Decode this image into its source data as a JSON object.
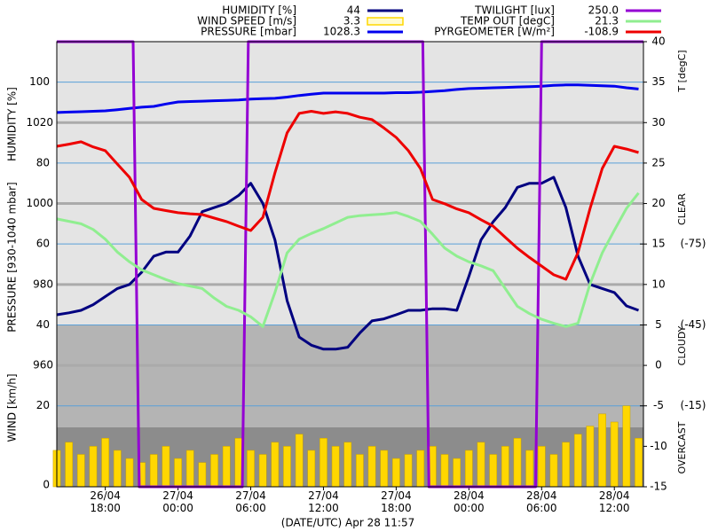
{
  "chart_data": {
    "type": "line",
    "xlabel": "(DATE/UTC) Apr 28 11:57",
    "ylabel": "HUMIDITY [%]",
    "pressure_label": "PRESSURE [930-1040 mbar]",
    "wind_label": "WIND [km/h]",
    "y2label": "T [degC]",
    "sky_labels": [
      "CLEAR",
      "CLOUDY",
      "OVERCAST"
    ],
    "xlim": [
      14,
      62.4
    ],
    "xticks": [
      {
        "value": 18,
        "label": "26/04 18:00"
      },
      {
        "value": 24,
        "label": "27/04 00:00"
      },
      {
        "value": 30,
        "label": "27/04 06:00"
      },
      {
        "value": 36,
        "label": "27/04 12:00"
      },
      {
        "value": 42,
        "label": "27/04 18:00"
      },
      {
        "value": 48,
        "label": "28/04 00:00"
      },
      {
        "value": 54,
        "label": "28/04 06:00"
      },
      {
        "value": 60,
        "label": "28/04 12:00"
      }
    ],
    "ylim": [
      0,
      110
    ],
    "yticks": [
      40,
      60,
      80,
      100
    ],
    "pressure_lim": [
      930,
      1040
    ],
    "pressure_ticks": [
      960,
      980,
      1000,
      1020
    ],
    "wind_lim": [
      0,
      110
    ],
    "wind_ticks": [
      0,
      20
    ],
    "y2lim": [
      -15,
      40
    ],
    "y2ticks": [
      -15,
      -10,
      -5,
      0,
      5,
      10,
      15,
      20,
      25,
      30,
      35,
      40
    ],
    "y3lim": [
      15,
      -150
    ],
    "y3ticks": [
      {
        "value": -75,
        "label": "(-75)"
      },
      {
        "value": -45,
        "label": "(-45)"
      },
      {
        "value": -15,
        "label": "(-15)"
      }
    ],
    "twilight_lim": [
      0,
      250
    ],
    "x": [
      14,
      15,
      16,
      17,
      18,
      19,
      20,
      21,
      22,
      23,
      24,
      25,
      26,
      27,
      28,
      29,
      30,
      31,
      32,
      33,
      34,
      35,
      36,
      37,
      38,
      39,
      40,
      41,
      42,
      43,
      44,
      45,
      46,
      47,
      48,
      49,
      50,
      51,
      52,
      53,
      54,
      55,
      56,
      57,
      58,
      59,
      60,
      61,
      62
    ],
    "series": [
      {
        "name": "HUMIDITY [%]",
        "current": "44",
        "color": "#000080",
        "axis": "y",
        "values": [
          42.5,
          43,
          43.6,
          45,
          47,
          49,
          50,
          53,
          57,
          58,
          58,
          62,
          68,
          69,
          70,
          72,
          75,
          70,
          61,
          46,
          37,
          35,
          34,
          34,
          34.5,
          38,
          41,
          41.5,
          42.5,
          43.6,
          43.6,
          44,
          44,
          43.6,
          52,
          61,
          65.5,
          69,
          74,
          75,
          75,
          76.5,
          69,
          57,
          50,
          49,
          48,
          44.7,
          43.6
        ]
      },
      {
        "name": "WIND SPEED [m/s]",
        "current": "3.3",
        "color": "#ffd700",
        "axis": "wind",
        "type": "bar",
        "values": [
          9,
          11,
          8,
          10,
          12,
          9,
          7,
          6,
          8,
          10,
          7,
          9,
          6,
          8,
          10,
          12,
          9,
          8,
          11,
          10,
          13,
          9,
          12,
          10,
          11,
          8,
          10,
          9,
          7,
          8,
          9,
          10,
          8,
          7,
          9,
          11,
          8,
          10,
          12,
          9,
          10,
          8,
          11,
          13,
          15,
          18,
          16,
          20,
          12
        ]
      },
      {
        "name": "PRESSURE [mbar]",
        "current": "1028.3",
        "color": "#0000ee",
        "axis": "pressure",
        "values": [
          1022.5,
          1022.6,
          1022.7,
          1022.8,
          1022.9,
          1023.2,
          1023.5,
          1023.8,
          1024,
          1024.6,
          1025.1,
          1025.2,
          1025.3,
          1025.4,
          1025.5,
          1025.6,
          1025.8,
          1025.9,
          1026,
          1026.3,
          1026.7,
          1027,
          1027.3,
          1027.3,
          1027.3,
          1027.3,
          1027.3,
          1027.3,
          1027.4,
          1027.4,
          1027.5,
          1027.7,
          1027.9,
          1028.2,
          1028.4,
          1028.5,
          1028.6,
          1028.7,
          1028.8,
          1028.9,
          1029,
          1029.2,
          1029.3,
          1029.3,
          1029.2,
          1029.1,
          1029,
          1028.6,
          1028.3
        ]
      },
      {
        "name": "TWILIGHT [lux]",
        "current": "250.0",
        "color": "#9400d3",
        "axis": "twilight",
        "x": [
          14,
          20.3,
          20.8,
          29.3,
          29.8,
          44.2,
          44.7,
          53.5,
          54.0,
          62.4
        ],
        "values": [
          250,
          250,
          0,
          0,
          250,
          250,
          0,
          0,
          250,
          250
        ]
      },
      {
        "name": "TEMP OUT [degC]",
        "current": "21.3",
        "color": "#90ee90",
        "axis": "y2",
        "values": [
          18.1,
          17.8,
          17.5,
          16.8,
          15.6,
          14,
          12.8,
          11.8,
          11.2,
          10.6,
          10.1,
          9.8,
          9.5,
          8.3,
          7.3,
          6.8,
          6,
          4.8,
          9,
          13.9,
          15.6,
          16.3,
          16.9,
          17.6,
          18.3,
          18.5,
          18.6,
          18.7,
          18.9,
          18.4,
          17.8,
          16.2,
          14.5,
          13.5,
          12.8,
          12.3,
          11.7,
          9.5,
          7.3,
          6.4,
          5.7,
          5.2,
          4.8,
          5.2,
          10.1,
          13.9,
          16.7,
          19.4,
          21.3
        ]
      },
      {
        "name": "PYRGEOMETER [W/m²]",
        "current": "-108.9",
        "color": "#ee0000",
        "axis": "y3",
        "values": [
          -111.2,
          -112,
          -112.9,
          -111,
          -109.6,
          -104.6,
          -99.7,
          -91.5,
          -88.2,
          -87.4,
          -86.6,
          -86.2,
          -85.9,
          -84.6,
          -83.3,
          -81.6,
          -80,
          -84.9,
          -101.4,
          -116.2,
          -123.4,
          -124.2,
          -123.4,
          -124,
          -123.4,
          -122,
          -121.1,
          -118,
          -114.5,
          -109.6,
          -103,
          -91.5,
          -89.9,
          -88,
          -86.6,
          -84,
          -81.6,
          -77.5,
          -73.4,
          -70,
          -66.8,
          -63.6,
          -61.9,
          -71.8,
          -88.2,
          -103,
          -111.2,
          -110.2,
          -108.9
        ]
      }
    ]
  }
}
